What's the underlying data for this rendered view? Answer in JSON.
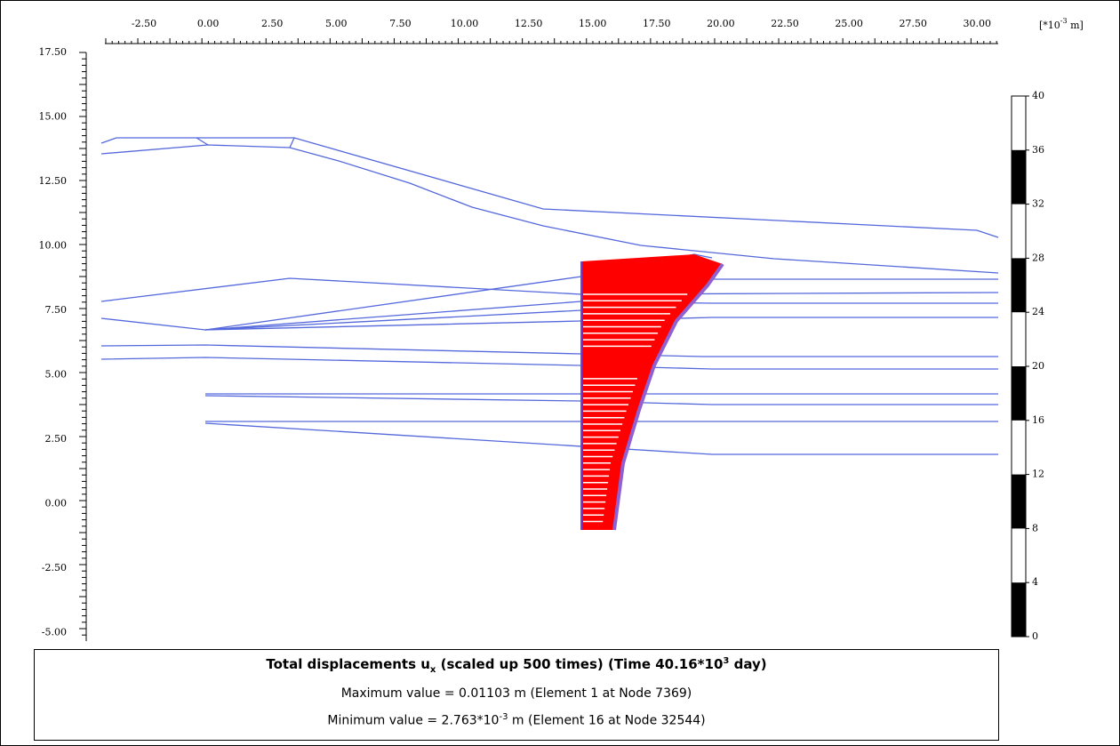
{
  "x_axis": {
    "ticks": [
      "-2.50",
      "0.00",
      "2.50",
      "5.00",
      "7.50",
      "10.00",
      "12.50",
      "15.00",
      "17.50",
      "20.00",
      "22.50",
      "25.00",
      "27.50",
      "30.00"
    ],
    "unit": {
      "prefix": "[*10",
      "exponent": "-3",
      "suffix": " m]"
    }
  },
  "y_axis": {
    "ticks": [
      "17.50",
      "15.00",
      "12.50",
      "10.00",
      "7.50",
      "5.00",
      "2.50",
      "0.00",
      "-2.50",
      "-5.00"
    ]
  },
  "legend": {
    "ticks": [
      "40",
      "36",
      "32",
      "28",
      "24",
      "20",
      "16",
      "12",
      "8",
      "4",
      "0"
    ]
  },
  "caption": {
    "title": {
      "prefix": "Total displacements u",
      "subscript": "x",
      "middle": " (scaled up 500 times) (Time 40.16*10",
      "superscript": "3",
      "suffix": " day)"
    },
    "maximum": "Maximum value = 0.01103 m (Element 1 at Node 7369)",
    "minimum": {
      "prefix": "Minimum value = 2.763*10",
      "superscript": "-3",
      "suffix": " m (Element 16 at Node 32544)"
    }
  }
}
